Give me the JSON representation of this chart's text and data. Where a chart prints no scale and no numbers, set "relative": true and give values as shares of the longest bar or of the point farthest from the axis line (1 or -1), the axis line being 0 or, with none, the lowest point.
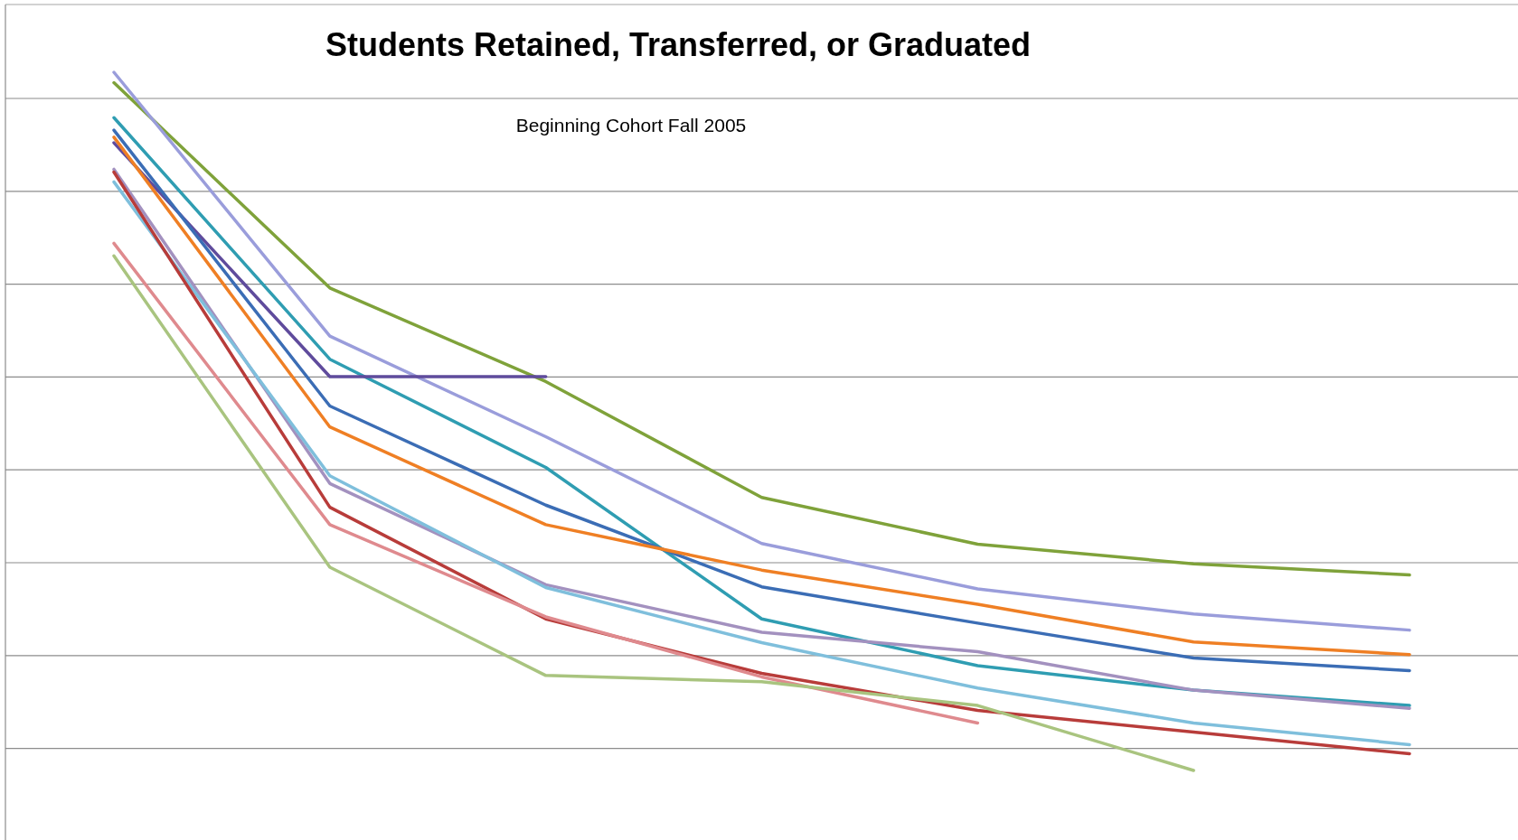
{
  "chart_data": {
    "type": "line",
    "title": "Students Retained, Transferred, or Graduated",
    "subtitle": "Beginning Cohort Fall 2005",
    "relative": true,
    "grid": "y",
    "marker": "none",
    "line_style": "solid",
    "categories": [
      null,
      null,
      null,
      null,
      null,
      null,
      null
    ],
    "series": [
      {
        "color": "#7fa23a",
        "values": [
          0.985,
          0.691,
          0.557,
          0.391,
          0.324,
          0.296,
          0.28
        ]
      },
      {
        "color": "#9a9ddb",
        "values": [
          1,
          0.622,
          0.478,
          0.325,
          0.26,
          0.224,
          0.201
        ]
      },
      {
        "color": "#2f9db2",
        "values": [
          0.935,
          0.589,
          0.434,
          0.217,
          0.15,
          0.115,
          0.093
        ]
      },
      {
        "color": "#5f4b9c",
        "values": [
          0.899,
          0.564,
          0.564,
          null,
          null,
          null,
          null
        ]
      },
      {
        "color": "#3b6db5",
        "values": [
          0.917,
          0.522,
          0.38,
          0.263,
          0.211,
          0.161,
          0.143
        ]
      },
      {
        "color": "#ef7f24",
        "values": [
          0.907,
          0.492,
          0.352,
          0.287,
          0.238,
          0.184,
          0.166
        ]
      },
      {
        "color": "#a391bf",
        "values": [
          0.861,
          0.411,
          0.266,
          0.198,
          0.17,
          0.115,
          0.089
        ]
      },
      {
        "color": "#7fbfdc",
        "values": [
          0.843,
          0.422,
          0.262,
          0.183,
          0.118,
          0.068,
          0.037
        ]
      },
      {
        "color": "#b83c3a",
        "values": [
          0.857,
          0.377,
          0.217,
          0.139,
          0.086,
          0.055,
          0.024
        ]
      },
      {
        "color": "#df8a8e",
        "values": [
          0.755,
          0.352,
          0.22,
          0.134,
          0.068,
          null,
          null
        ]
      },
      {
        "color": "#a9c47f",
        "values": [
          0.737,
          0.291,
          0.136,
          0.127,
          0.093,
          0,
          null
        ]
      }
    ]
  }
}
